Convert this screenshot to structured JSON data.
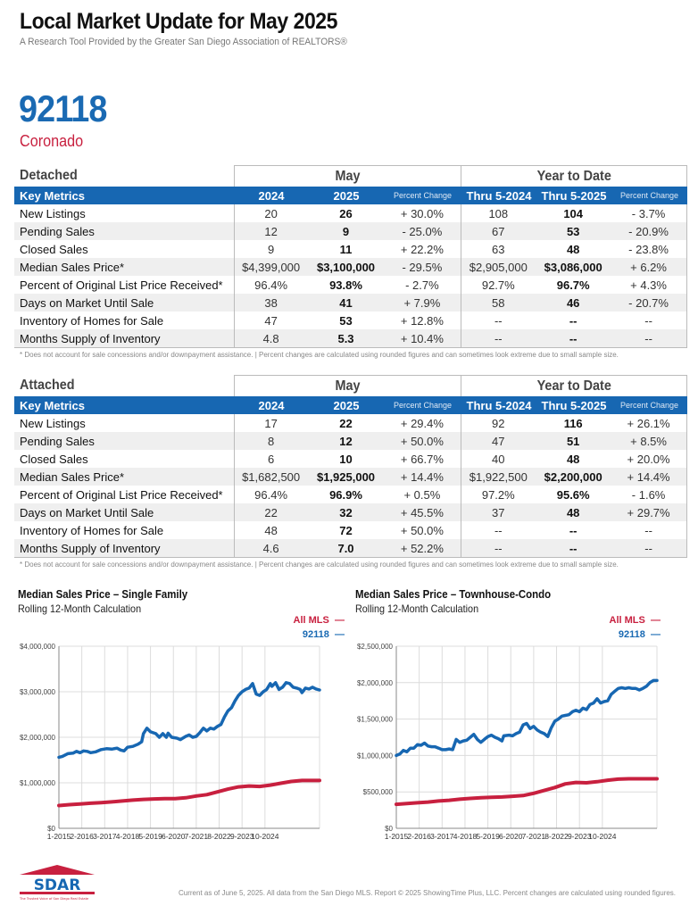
{
  "header": {
    "title": "Local Market Update for May 2025",
    "subtitle": "A Research Tool Provided by the Greater San Diego Association of REALTORS®",
    "zip": "92118",
    "city": "Coronado"
  },
  "colors": {
    "brand_blue": "#1767b2",
    "accent_red": "#c8203f",
    "zip_blue": "#1a6ab3"
  },
  "tables": [
    {
      "section": "Detached",
      "group_may": "May",
      "group_ytd": "Year to Date",
      "columns": [
        "Key Metrics",
        "2024",
        "2025",
        "Percent Change",
        "Thru 5-2024",
        "Thru 5-2025",
        "Percent Change"
      ],
      "rows": [
        [
          "New Listings",
          "20",
          "26",
          "+ 30.0%",
          "108",
          "104",
          "- 3.7%"
        ],
        [
          "Pending Sales",
          "12",
          "9",
          "- 25.0%",
          "67",
          "53",
          "- 20.9%"
        ],
        [
          "Closed Sales",
          "9",
          "11",
          "+ 22.2%",
          "63",
          "48",
          "- 23.8%"
        ],
        [
          "Median Sales Price*",
          "$4,399,000",
          "$3,100,000",
          "- 29.5%",
          "$2,905,000",
          "$3,086,000",
          "+ 6.2%"
        ],
        [
          "Percent of Original List Price Received*",
          "96.4%",
          "93.8%",
          "- 2.7%",
          "92.7%",
          "96.7%",
          "+ 4.3%"
        ],
        [
          "Days on Market Until Sale",
          "38",
          "41",
          "+ 7.9%",
          "58",
          "46",
          "- 20.7%"
        ],
        [
          "Inventory of Homes for Sale",
          "47",
          "53",
          "+ 12.8%",
          "--",
          "--",
          "--"
        ],
        [
          "Months Supply of Inventory",
          "4.8",
          "5.3",
          "+ 10.4%",
          "--",
          "--",
          "--"
        ]
      ],
      "note": "* Does not account for sale concessions and/or downpayment assistance.  |  Percent changes are calculated using rounded figures and can sometimes look extreme due to small sample size."
    },
    {
      "section": "Attached",
      "group_may": "May",
      "group_ytd": "Year to Date",
      "columns": [
        "Key Metrics",
        "2024",
        "2025",
        "Percent Change",
        "Thru 5-2024",
        "Thru 5-2025",
        "Percent Change"
      ],
      "rows": [
        [
          "New Listings",
          "17",
          "22",
          "+ 29.4%",
          "92",
          "116",
          "+ 26.1%"
        ],
        [
          "Pending Sales",
          "8",
          "12",
          "+ 50.0%",
          "47",
          "51",
          "+ 8.5%"
        ],
        [
          "Closed Sales",
          "6",
          "10",
          "+ 66.7%",
          "40",
          "48",
          "+ 20.0%"
        ],
        [
          "Median Sales Price*",
          "$1,682,500",
          "$1,925,000",
          "+ 14.4%",
          "$1,922,500",
          "$2,200,000",
          "+ 14.4%"
        ],
        [
          "Percent of Original List Price Received*",
          "96.4%",
          "96.9%",
          "+ 0.5%",
          "97.2%",
          "95.6%",
          "- 1.6%"
        ],
        [
          "Days on Market Until Sale",
          "22",
          "32",
          "+ 45.5%",
          "37",
          "48",
          "+ 29.7%"
        ],
        [
          "Inventory of Homes for Sale",
          "48",
          "72",
          "+ 50.0%",
          "--",
          "--",
          "--"
        ],
        [
          "Months Supply of Inventory",
          "4.6",
          "7.0",
          "+ 52.2%",
          "--",
          "--",
          "--"
        ]
      ],
      "note": "* Does not account for sale concessions and/or downpayment assistance.  |  Percent changes are calculated using rounded figures and can sometimes look extreme due to small sample size."
    }
  ],
  "chart_data": [
    {
      "type": "line",
      "title": "Median Sales Price – Single Family",
      "subtitle": "Rolling 12-Month Calculation",
      "xlabel": "",
      "ylabel": "",
      "x_ticks": [
        "1-2015",
        "2-2016",
        "3-2017",
        "4-2018",
        "5-2019",
        "6-2020",
        "7-2021",
        "8-2022",
        "9-2023",
        "10-2024"
      ],
      "y_ticks": [
        "$0",
        "$1,000,000",
        "$2,000,000",
        "$3,000,000",
        "$4,000,000"
      ],
      "ylim": [
        0,
        4000000
      ],
      "grid": true,
      "legend": "top-right",
      "x_range": [
        "2015-01",
        "2025-05"
      ],
      "series": [
        {
          "name": "All MLS",
          "color": "#c8203f",
          "points": [
            [
              0,
              500000
            ],
            [
              6,
              520000
            ],
            [
              12,
              535000
            ],
            [
              18,
              550000
            ],
            [
              24,
              565000
            ],
            [
              30,
              580000
            ],
            [
              36,
              600000
            ],
            [
              42,
              620000
            ],
            [
              48,
              635000
            ],
            [
              54,
              645000
            ],
            [
              60,
              650000
            ],
            [
              66,
              650000
            ],
            [
              72,
              670000
            ],
            [
              78,
              710000
            ],
            [
              84,
              740000
            ],
            [
              90,
              800000
            ],
            [
              96,
              860000
            ],
            [
              102,
              910000
            ],
            [
              108,
              930000
            ],
            [
              114,
              920000
            ],
            [
              120,
              950000
            ],
            [
              126,
              990000
            ],
            [
              132,
              1030000
            ],
            [
              138,
              1050000
            ],
            [
              144,
              1050000
            ],
            [
              148,
              1050000
            ]
          ]
        },
        {
          "name": "92118",
          "color": "#1767b2",
          "points": [
            [
              0,
              1560000
            ],
            [
              2,
              1580000
            ],
            [
              5,
              1640000
            ],
            [
              8,
              1650000
            ],
            [
              10,
              1690000
            ],
            [
              12,
              1660000
            ],
            [
              14,
              1700000
            ],
            [
              16,
              1690000
            ],
            [
              18,
              1660000
            ],
            [
              21,
              1680000
            ],
            [
              24,
              1730000
            ],
            [
              27,
              1750000
            ],
            [
              30,
              1740000
            ],
            [
              33,
              1760000
            ],
            [
              35,
              1720000
            ],
            [
              37,
              1700000
            ],
            [
              39,
              1780000
            ],
            [
              42,
              1800000
            ],
            [
              45,
              1850000
            ],
            [
              47,
              1900000
            ],
            [
              48,
              2080000
            ],
            [
              50,
              2200000
            ],
            [
              52,
              2120000
            ],
            [
              55,
              2080000
            ],
            [
              57,
              2000000
            ],
            [
              59,
              2080000
            ],
            [
              61,
              2000000
            ],
            [
              62,
              2090000
            ],
            [
              64,
              2000000
            ],
            [
              67,
              1980000
            ],
            [
              69,
              1950000
            ],
            [
              72,
              2020000
            ],
            [
              74,
              2050000
            ],
            [
              76,
              2000000
            ],
            [
              78,
              2020000
            ],
            [
              80,
              2100000
            ],
            [
              82,
              2200000
            ],
            [
              84,
              2140000
            ],
            [
              86,
              2200000
            ],
            [
              88,
              2180000
            ],
            [
              90,
              2240000
            ],
            [
              92,
              2280000
            ],
            [
              94,
              2450000
            ],
            [
              96,
              2580000
            ],
            [
              98,
              2650000
            ],
            [
              100,
              2800000
            ],
            [
              102,
              2920000
            ],
            [
              104,
              3000000
            ],
            [
              106,
              3050000
            ],
            [
              108,
              3080000
            ],
            [
              110,
              3180000
            ],
            [
              112,
              2950000
            ],
            [
              114,
              2920000
            ],
            [
              116,
              3000000
            ],
            [
              118,
              3050000
            ],
            [
              120,
              3180000
            ],
            [
              121,
              3120000
            ],
            [
              123,
              3200000
            ],
            [
              125,
              3050000
            ],
            [
              127,
              3100000
            ],
            [
              129,
              3200000
            ],
            [
              131,
              3180000
            ],
            [
              133,
              3100000
            ],
            [
              135,
              3080000
            ],
            [
              137,
              3050000
            ],
            [
              138,
              2980000
            ],
            [
              140,
              3080000
            ],
            [
              142,
              3060000
            ],
            [
              144,
              3100000
            ],
            [
              146,
              3060000
            ],
            [
              148,
              3040000
            ]
          ]
        }
      ]
    },
    {
      "type": "line",
      "title": "Median Sales Price – Townhouse-Condo",
      "subtitle": "Rolling 12-Month Calculation",
      "xlabel": "",
      "ylabel": "",
      "x_ticks": [
        "1-2015",
        "2-2016",
        "3-2017",
        "4-2018",
        "5-2019",
        "6-2020",
        "7-2021",
        "8-2022",
        "9-2023",
        "10-2024"
      ],
      "y_ticks": [
        "$0",
        "$500,000",
        "$1,000,000",
        "$1,500,000",
        "$2,000,000",
        "$2,500,000"
      ],
      "ylim": [
        0,
        2500000
      ],
      "grid": true,
      "legend": "top-right",
      "x_range": [
        "2015-01",
        "2025-05"
      ],
      "series": [
        {
          "name": "All MLS",
          "color": "#c8203f",
          "points": [
            [
              0,
              330000
            ],
            [
              6,
              340000
            ],
            [
              12,
              350000
            ],
            [
              18,
              360000
            ],
            [
              24,
              375000
            ],
            [
              30,
              385000
            ],
            [
              36,
              400000
            ],
            [
              42,
              410000
            ],
            [
              48,
              420000
            ],
            [
              54,
              425000
            ],
            [
              60,
              430000
            ],
            [
              66,
              440000
            ],
            [
              72,
              450000
            ],
            [
              78,
              480000
            ],
            [
              84,
              520000
            ],
            [
              90,
              560000
            ],
            [
              96,
              610000
            ],
            [
              102,
              630000
            ],
            [
              108,
              625000
            ],
            [
              114,
              640000
            ],
            [
              120,
              660000
            ],
            [
              126,
              675000
            ],
            [
              132,
              680000
            ],
            [
              138,
              680000
            ],
            [
              144,
              680000
            ],
            [
              148,
              680000
            ]
          ]
        },
        {
          "name": "92118",
          "color": "#1767b2",
          "points": [
            [
              0,
              1000000
            ],
            [
              2,
              1020000
            ],
            [
              4,
              1070000
            ],
            [
              6,
              1050000
            ],
            [
              8,
              1100000
            ],
            [
              10,
              1100000
            ],
            [
              12,
              1150000
            ],
            [
              14,
              1140000
            ],
            [
              16,
              1170000
            ],
            [
              18,
              1130000
            ],
            [
              20,
              1120000
            ],
            [
              22,
              1120000
            ],
            [
              24,
              1100000
            ],
            [
              26,
              1080000
            ],
            [
              28,
              1080000
            ],
            [
              30,
              1090000
            ],
            [
              32,
              1080000
            ],
            [
              34,
              1220000
            ],
            [
              36,
              1180000
            ],
            [
              38,
              1200000
            ],
            [
              40,
              1210000
            ],
            [
              42,
              1250000
            ],
            [
              44,
              1290000
            ],
            [
              46,
              1220000
            ],
            [
              48,
              1180000
            ],
            [
              50,
              1220000
            ],
            [
              52,
              1260000
            ],
            [
              54,
              1280000
            ],
            [
              56,
              1250000
            ],
            [
              58,
              1230000
            ],
            [
              60,
              1200000
            ],
            [
              61,
              1270000
            ],
            [
              64,
              1280000
            ],
            [
              66,
              1270000
            ],
            [
              68,
              1300000
            ],
            [
              70,
              1320000
            ],
            [
              72,
              1420000
            ],
            [
              74,
              1440000
            ],
            [
              76,
              1370000
            ],
            [
              78,
              1400000
            ],
            [
              80,
              1350000
            ],
            [
              82,
              1320000
            ],
            [
              84,
              1300000
            ],
            [
              86,
              1260000
            ],
            [
              88,
              1380000
            ],
            [
              90,
              1470000
            ],
            [
              92,
              1500000
            ],
            [
              94,
              1540000
            ],
            [
              96,
              1550000
            ],
            [
              98,
              1560000
            ],
            [
              100,
              1600000
            ],
            [
              102,
              1620000
            ],
            [
              104,
              1600000
            ],
            [
              106,
              1650000
            ],
            [
              108,
              1630000
            ],
            [
              110,
              1700000
            ],
            [
              112,
              1720000
            ],
            [
              114,
              1780000
            ],
            [
              116,
              1720000
            ],
            [
              118,
              1740000
            ],
            [
              120,
              1750000
            ],
            [
              122,
              1840000
            ],
            [
              124,
              1880000
            ],
            [
              126,
              1920000
            ],
            [
              128,
              1930000
            ],
            [
              130,
              1920000
            ],
            [
              132,
              1930000
            ],
            [
              134,
              1920000
            ],
            [
              136,
              1920000
            ],
            [
              138,
              1900000
            ],
            [
              140,
              1920000
            ],
            [
              142,
              1950000
            ],
            [
              144,
              2000000
            ],
            [
              146,
              2030000
            ],
            [
              148,
              2030000
            ]
          ]
        }
      ]
    }
  ],
  "footer": {
    "logo_text": "SDAR",
    "logo_tagline": "The Trusted Voice of San Diego Real Estate",
    "text": "Current as of June 5, 2025. All data from the San Diego MLS. Report © 2025 ShowingTime Plus, LLC. Percent changes are calculated using rounded figures."
  }
}
